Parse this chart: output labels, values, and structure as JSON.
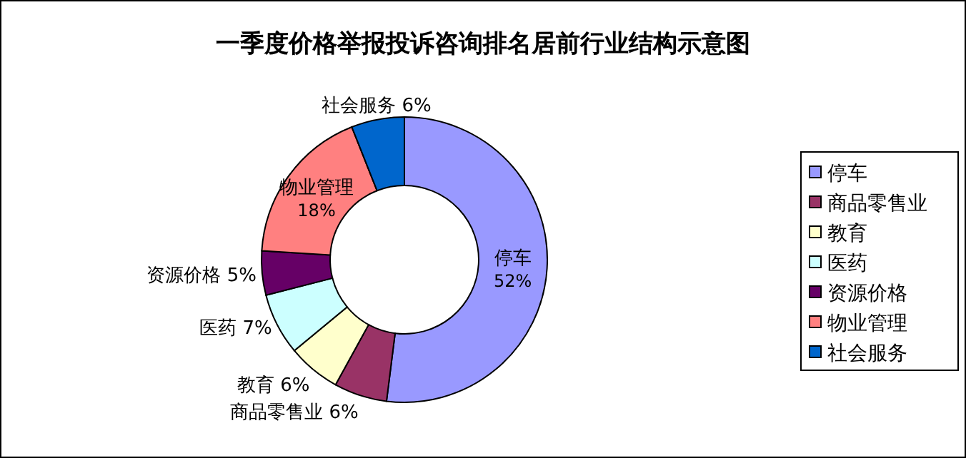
{
  "chart_data": {
    "type": "donut",
    "title": "一季度价格举报投诉咨询排名居前行业结构示意图",
    "categories": [
      "停车",
      "商品零售业",
      "教育",
      "医药",
      "资源价格",
      "物业管理",
      "社会服务"
    ],
    "values": [
      52,
      6,
      6,
      7,
      5,
      18,
      6
    ],
    "colors": [
      "#9999ff",
      "#993366",
      "#ffffcc",
      "#ccffff",
      "#660066",
      "#ff8080",
      "#0066cc"
    ],
    "value_labels": [
      "52%",
      "6%",
      "6%",
      "7%",
      "5%",
      "18%",
      "6%"
    ],
    "legend": "right"
  }
}
